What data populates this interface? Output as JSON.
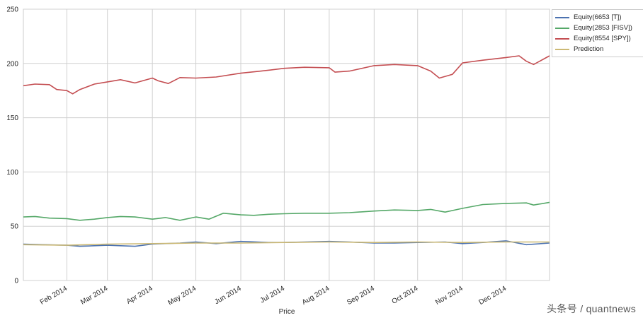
{
  "chart_data": {
    "type": "line",
    "xlabel": "Price",
    "ylabel": "",
    "ylim": [
      0,
      250
    ],
    "yticks": [
      0,
      50,
      100,
      150,
      200,
      250
    ],
    "xlim": [
      "2014-01-02",
      "2014-12-31"
    ],
    "xticks": [
      {
        "date": "2014-02-01",
        "label": "Feb 2014"
      },
      {
        "date": "2014-03-01",
        "label": "Mar 2014"
      },
      {
        "date": "2014-04-01",
        "label": "Apr 2014"
      },
      {
        "date": "2014-05-01",
        "label": "May 2014"
      },
      {
        "date": "2014-06-01",
        "label": "Jun 2014"
      },
      {
        "date": "2014-07-01",
        "label": "Jul 2014"
      },
      {
        "date": "2014-08-01",
        "label": "Aug 2014"
      },
      {
        "date": "2014-09-01",
        "label": "Sep 2014"
      },
      {
        "date": "2014-10-01",
        "label": "Oct 2014"
      },
      {
        "date": "2014-11-01",
        "label": "Nov 2014"
      },
      {
        "date": "2014-12-01",
        "label": "Dec 2014"
      }
    ],
    "grid": true,
    "legend_position": "outside-top-right",
    "series": [
      {
        "name": "Equity(6653 [T])",
        "color": "#4c72b0",
        "x": [
          "2014-01-02",
          "2014-01-15",
          "2014-02-01",
          "2014-02-10",
          "2014-03-01",
          "2014-03-10",
          "2014-03-20",
          "2014-04-01",
          "2014-04-20",
          "2014-05-01",
          "2014-05-15",
          "2014-06-01",
          "2014-06-20",
          "2014-07-01",
          "2014-07-15",
          "2014-08-01",
          "2014-08-15",
          "2014-09-01",
          "2014-09-15",
          "2014-10-01",
          "2014-10-20",
          "2014-11-01",
          "2014-11-15",
          "2014-12-01",
          "2014-12-15",
          "2014-12-31"
        ],
        "y": [
          33.5,
          33.0,
          32.5,
          31.5,
          32.5,
          32.0,
          31.5,
          33.5,
          34.5,
          35.5,
          34.0,
          36.0,
          35.0,
          35.0,
          35.5,
          36.0,
          35.5,
          34.5,
          34.5,
          35.0,
          35.5,
          34.0,
          35.0,
          36.5,
          33.0,
          34.5
        ]
      },
      {
        "name": "Equity(2853 [FISV])",
        "color": "#55a868",
        "x": [
          "2014-01-02",
          "2014-01-10",
          "2014-01-20",
          "2014-02-01",
          "2014-02-10",
          "2014-02-20",
          "2014-03-01",
          "2014-03-10",
          "2014-03-20",
          "2014-04-01",
          "2014-04-10",
          "2014-04-20",
          "2014-05-01",
          "2014-05-10",
          "2014-05-20",
          "2014-06-01",
          "2014-06-10",
          "2014-06-20",
          "2014-07-01",
          "2014-07-15",
          "2014-08-01",
          "2014-08-15",
          "2014-09-01",
          "2014-09-15",
          "2014-10-01",
          "2014-10-10",
          "2014-10-20",
          "2014-11-01",
          "2014-11-15",
          "2014-12-01",
          "2014-12-15",
          "2014-12-20",
          "2014-12-31"
        ],
        "y": [
          58.5,
          59.0,
          57.5,
          57.0,
          55.5,
          56.5,
          58.0,
          59.0,
          58.5,
          56.5,
          58.0,
          55.5,
          58.5,
          56.5,
          62.0,
          60.5,
          60.0,
          61.0,
          61.5,
          62.0,
          62.0,
          62.5,
          64.0,
          65.0,
          64.5,
          65.5,
          63.0,
          66.5,
          70.0,
          71.0,
          71.5,
          69.5,
          72.0
        ]
      },
      {
        "name": "Equity(8554 [SPY])",
        "color": "#c44e52",
        "x": [
          "2014-01-02",
          "2014-01-10",
          "2014-01-20",
          "2014-01-25",
          "2014-02-01",
          "2014-02-05",
          "2014-02-10",
          "2014-02-20",
          "2014-03-01",
          "2014-03-10",
          "2014-03-20",
          "2014-04-01",
          "2014-04-05",
          "2014-04-12",
          "2014-04-20",
          "2014-05-01",
          "2014-05-15",
          "2014-06-01",
          "2014-06-15",
          "2014-07-01",
          "2014-07-15",
          "2014-08-01",
          "2014-08-05",
          "2014-08-15",
          "2014-09-01",
          "2014-09-15",
          "2014-10-01",
          "2014-10-10",
          "2014-10-16",
          "2014-10-25",
          "2014-11-01",
          "2014-11-15",
          "2014-12-01",
          "2014-12-10",
          "2014-12-15",
          "2014-12-20",
          "2014-12-31"
        ],
        "y": [
          179.5,
          181.0,
          180.5,
          176.0,
          175.0,
          172.0,
          176.0,
          181.0,
          183.0,
          185.0,
          182.0,
          186.5,
          184.0,
          181.5,
          187.0,
          186.5,
          187.5,
          191.0,
          193.0,
          195.5,
          196.5,
          196.0,
          192.0,
          193.0,
          198.0,
          199.0,
          198.0,
          193.0,
          186.5,
          190.0,
          200.5,
          203.0,
          205.5,
          207.0,
          202.0,
          199.0,
          207.0
        ]
      },
      {
        "name": "Prediction",
        "color": "#ccb974",
        "x": [
          "2014-01-02",
          "2014-02-01",
          "2014-03-01",
          "2014-04-01",
          "2014-05-01",
          "2014-06-01",
          "2014-07-01",
          "2014-08-01",
          "2014-09-01",
          "2014-10-01",
          "2014-11-01",
          "2014-12-01",
          "2014-12-31"
        ],
        "y": [
          33.0,
          32.5,
          33.5,
          34.0,
          34.5,
          34.5,
          35.0,
          35.5,
          35.0,
          35.5,
          35.0,
          35.5,
          35.5
        ]
      }
    ]
  },
  "watermark": "头条号 / quantnews"
}
